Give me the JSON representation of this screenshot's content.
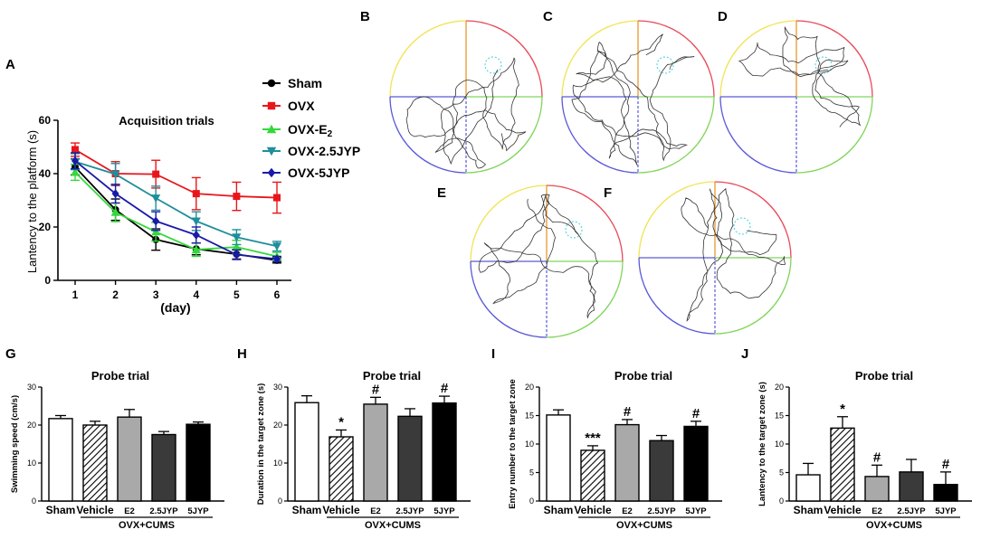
{
  "panel_letters": {
    "a": "A",
    "b": "B",
    "c": "C",
    "d": "D",
    "e": "E",
    "f": "F",
    "g": "G",
    "h": "H",
    "i": "I",
    "j": "J"
  },
  "colors": {
    "Sham": "#000000",
    "OVX": "#e8161b",
    "OVX-E2": "#33d93a",
    "OVX-2.5JYP": "#1f8e9b",
    "OVX-5JYP": "#1a1aa8",
    "quad_yellow": "#f0e455",
    "quad_red": "#e84a5a",
    "quad_green": "#7fd65a",
    "quad_blue": "#5a5ad8",
    "platform": "#5fd6e0"
  },
  "group_labels": [
    "Sham",
    "Vehicle",
    "E2",
    "2.5JYP",
    "5JYP"
  ],
  "group_caption": "OVX+CUMS",
  "chart_data": [
    {
      "panel": "A",
      "type": "line",
      "title": "Acquisition trials",
      "xlabel": "(day)",
      "ylabel": "Lantency to the platform (s)",
      "x": [
        1,
        2,
        3,
        4,
        5,
        6
      ],
      "ylim": [
        0,
        60
      ],
      "yticks": [
        0,
        20,
        40,
        60
      ],
      "series": [
        {
          "name": "Sham",
          "label": "Sham",
          "marker": "circle",
          "values": [
            42.5,
            26.5,
            15.3,
            11.8,
            9.8,
            7.5
          ],
          "err": [
            3,
            4,
            4,
            2.2,
            1.8,
            1
          ]
        },
        {
          "name": "OVX",
          "label": "OVX",
          "marker": "square",
          "values": [
            49,
            40,
            39.8,
            32.5,
            31.5,
            31
          ],
          "err": [
            2.5,
            4.5,
            5.2,
            6,
            5.3,
            5.8
          ]
        },
        {
          "name": "OVX-E2",
          "label": "OVX-E",
          "label_sub": "2",
          "marker": "triangle",
          "values": [
            40.5,
            25.5,
            18.2,
            11.5,
            12.5,
            9
          ],
          "err": [
            3,
            3.5,
            3.5,
            2.5,
            2.5,
            1.5
          ]
        },
        {
          "name": "OVX-2.5JYP",
          "label": "OVX-2.5JYP",
          "marker": "triangle-down",
          "values": [
            44.5,
            39.8,
            30.8,
            22.2,
            16.2,
            12.8
          ],
          "err": [
            3,
            4,
            4.5,
            3.5,
            2.8,
            1.8
          ]
        },
        {
          "name": "OVX-5JYP",
          "label": "OVX-5JYP",
          "marker": "diamond",
          "values": [
            44.8,
            32.5,
            22.2,
            17,
            9.6,
            8
          ],
          "err": [
            3,
            3.5,
            3.5,
            3,
            1.8,
            1
          ]
        }
      ]
    },
    {
      "panel": "G",
      "type": "bar",
      "title": "Probe trial",
      "ylabel": "Swimming speed (cm/s)",
      "categories": [
        "Sham",
        "Vehicle",
        "E2",
        "2.5JYP",
        "5JYP"
      ],
      "values": [
        21.7,
        20,
        22.1,
        17.5,
        20.2
      ],
      "err": [
        0.8,
        1,
        2,
        0.8,
        0.6
      ],
      "ylim": [
        0,
        30
      ],
      "yticks": [
        0,
        10,
        20,
        30
      ],
      "annotations": [
        "",
        "",
        "",
        "",
        ""
      ]
    },
    {
      "panel": "H",
      "type": "bar",
      "title": "Probe trial",
      "ylabel": "Duration in the target zone (s)",
      "categories": [
        "Sham",
        "Vehicle",
        "E2",
        "2.5JYP",
        "5JYP"
      ],
      "values": [
        25.9,
        16.9,
        25.5,
        22.3,
        25.8
      ],
      "err": [
        1.8,
        1.8,
        1.8,
        2,
        1.8
      ],
      "ylim": [
        0,
        30
      ],
      "yticks": [
        0,
        10,
        20,
        30
      ],
      "annotations": [
        "",
        "*",
        "#",
        "",
        "#"
      ]
    },
    {
      "panel": "I",
      "type": "bar",
      "title": "Probe trial",
      "ylabel": "Entry number to the target zone",
      "categories": [
        "Sham",
        "Vehicle",
        "E2",
        "2.5JYP",
        "5JYP"
      ],
      "values": [
        15.1,
        8.9,
        13.4,
        10.6,
        13.1
      ],
      "err": [
        0.9,
        0.8,
        0.9,
        0.9,
        0.9
      ],
      "ylim": [
        0,
        20
      ],
      "yticks": [
        0,
        5,
        10,
        15,
        20
      ],
      "annotations": [
        "",
        "***",
        "#",
        "",
        "#"
      ]
    },
    {
      "panel": "J",
      "type": "bar",
      "title": "Probe trial",
      "ylabel": "Lantency to the target zone (s)",
      "categories": [
        "Sham",
        "Vehicle",
        "E2",
        "2.5JYP",
        "5JYP"
      ],
      "values": [
        4.6,
        12.8,
        4.3,
        5.1,
        2.9
      ],
      "err": [
        2,
        2,
        2,
        2.2,
        2.2
      ],
      "ylim": [
        0,
        20
      ],
      "yticks": [
        0,
        5,
        10,
        15,
        20
      ],
      "annotations": [
        "",
        "*",
        "#",
        "",
        "#"
      ]
    }
  ]
}
